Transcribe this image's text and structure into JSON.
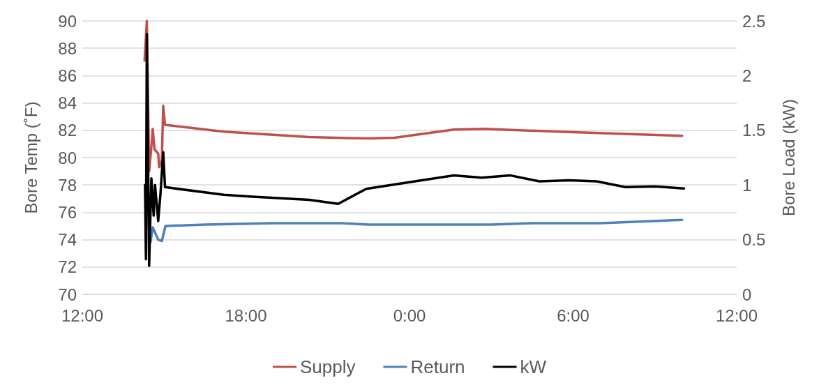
{
  "chart_data": {
    "type": "line",
    "ylabel": "Bore Temp (˚F)",
    "y2label": "Bore Load (kW)",
    "xlim": [
      "--01-01T12:00",
      "--01-02T12:00"
    ],
    "xticks": [
      {
        "value": "--01-01T12:00",
        "label": "12:00"
      },
      {
        "value": "--01-01T18:00",
        "label": "18:00"
      },
      {
        "value": "--01-02T00:00",
        "label": "0:00"
      },
      {
        "value": "--01-02T06:00",
        "label": "6:00"
      },
      {
        "value": "--01-02T12:00",
        "label": "12:00"
      }
    ],
    "ylim": [
      70,
      90
    ],
    "yticks": [
      70,
      72,
      74,
      76,
      78,
      80,
      82,
      84,
      86,
      88,
      90
    ],
    "y2lim": [
      0,
      2.5
    ],
    "y2ticks": [
      0,
      0.5,
      1,
      1.5,
      2,
      2.5
    ],
    "grid": "y",
    "legend": "bottom",
    "marker": "none",
    "line_style": "solid",
    "series": [
      {
        "name": "Supply",
        "color": "#c0504d",
        "x": [
          "--01-01T14:17",
          "--01-01T14:22",
          "--01-01T14:27",
          "--01-01T14:31",
          "--01-01T14:35",
          "--01-01T14:39",
          "--01-01T14:47",
          "--01-01T14:49",
          "--01-01T14:55",
          "--01-01T14:58",
          "--01-01T15:02",
          "--01-01T17:11",
          "--01-01T20:19",
          "--01-01T22:30",
          "--01-01T23:27",
          "--01-02T01:38",
          "--01-02T02:44",
          "--01-02T05:27",
          "--01-02T10:00"
        ],
        "values": [
          87.1,
          90,
          79,
          80.4,
          82.1,
          80.6,
          80.3,
          79.3,
          79.8,
          83.8,
          82.4,
          81.9,
          81.5,
          81.4,
          81.45,
          82.05,
          82.1,
          81.9,
          81.6
        ]
      },
      {
        "name": "Return",
        "color": "#4f81bd",
        "x": [
          "--01-01T14:30",
          "--01-01T14:35",
          "--01-01T14:47",
          "--01-01T14:55",
          "--01-01T15:03",
          "--01-01T16:30",
          "--01-01T19:00",
          "--01-01T21:30",
          "--01-01T22:30",
          "--01-02T03:00",
          "--01-02T04:30",
          "--01-02T07:00",
          "--01-02T10:00"
        ],
        "values": [
          73.8,
          74.9,
          74.0,
          73.9,
          75.0,
          75.1,
          75.2,
          75.2,
          75.1,
          75.1,
          75.2,
          75.2,
          75.45
        ]
      },
      {
        "name": "kW",
        "color": "#000000",
        "axis": "y2",
        "x": [
          "--01-01T14:18",
          "--01-01T14:20",
          "--01-01T14:22",
          "--01-01T14:27",
          "--01-01T14:32",
          "--01-01T14:37",
          "--01-01T14:40",
          "--01-01T14:47",
          "--01-01T14:52",
          "--01-01T14:58",
          "--01-01T15:02",
          "--01-01T17:11",
          "--01-01T18:08",
          "--01-01T20:19",
          "--01-01T21:23",
          "--01-01T22:25",
          "--01-01T23:27",
          "--01-02T01:38",
          "--01-02T02:39",
          "--01-02T03:41",
          "--01-02T04:46",
          "--01-02T05:52",
          "--01-02T06:52",
          "--01-02T07:55",
          "--01-02T09:00",
          "--01-02T10:04"
        ],
        "values": [
          1.0,
          0.32,
          2.38,
          0.26,
          1.06,
          0.72,
          1.0,
          0.67,
          0.92,
          1.3,
          0.98,
          0.91,
          0.895,
          0.864,
          0.827,
          0.965,
          1.005,
          1.088,
          1.066,
          1.088,
          1.033,
          1.042,
          1.033,
          0.98,
          0.987,
          0.968
        ]
      }
    ]
  }
}
